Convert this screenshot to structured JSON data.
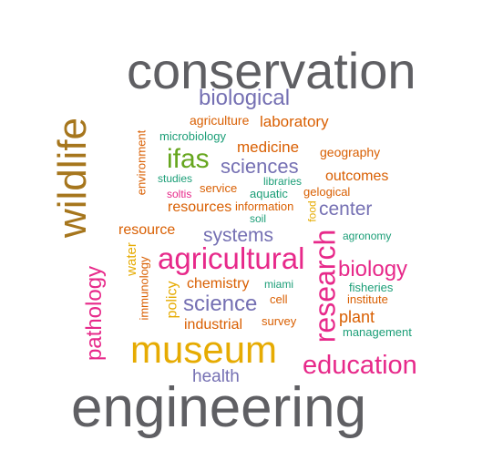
{
  "palette": {
    "gray": "#5f5f63",
    "purple": "#7570b3",
    "orange": "#d95f02",
    "teal": "#1b9e77",
    "green": "#66a61e",
    "magenta": "#e7298a",
    "gold": "#e6ab02",
    "brown": "#a6761d"
  },
  "words": [
    "conservation",
    "engineering",
    "wildlife",
    "museum",
    "agricultural",
    "research",
    "education",
    "biological",
    "pathology",
    "biology",
    "science",
    "ifas",
    "sciences",
    "systems",
    "health",
    "center",
    "resources",
    "resource",
    "chemistry",
    "industrial",
    "plant",
    "laboratory",
    "medicine",
    "outcomes",
    "agriculture",
    "geography",
    "microbiology",
    "environment",
    "studies",
    "service",
    "libraries",
    "gelogical",
    "soltis",
    "aquatic",
    "information",
    "soil",
    "food",
    "water",
    "agronomy",
    "immunology",
    "policy",
    "miami",
    "cell",
    "fisheries",
    "institute",
    "survey",
    "management"
  ]
}
